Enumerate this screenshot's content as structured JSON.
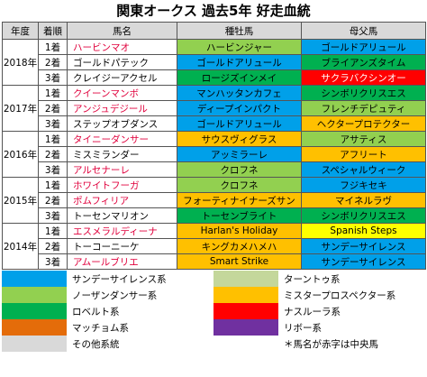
{
  "title": "関東オークス 過去5年 好走血統",
  "headers": [
    "年度",
    "着順",
    "馬名",
    "種牡馬",
    "母父馬"
  ],
  "colors": {
    "sunday": "#00a0e9",
    "northern": "#92d050",
    "roberto": "#00b050",
    "mr_prospector": "#ffc000",
    "turnto": "#c4d79b",
    "nasrullah": "#ff0000",
    "ribot": "#7030a0",
    "matchem": "#e46c0a",
    "other": "#d9d9d9",
    "yellow": "#ffff00"
  },
  "rows": [
    {
      "year": "2018年",
      "rank": "1着",
      "horse": "ハービンマオ",
      "horse_red": true,
      "sire": "ハービンジャー",
      "sire_color": "northern",
      "bms": "ゴールドアリュール",
      "bms_color": "sunday"
    },
    {
      "year": "",
      "rank": "2着",
      "horse": "ゴールドパテック",
      "horse_red": false,
      "sire": "ゴールドアリュール",
      "sire_color": "sunday",
      "bms": "ブライアンズタイム",
      "bms_color": "roberto"
    },
    {
      "year": "",
      "rank": "3着",
      "horse": "クレイジーアクセル",
      "horse_red": false,
      "sire": "ロージズインメイ",
      "sire_color": "roberto",
      "bms": "サクラバクシンオー",
      "bms_color": "nasrullah",
      "bms_white": true
    },
    {
      "year": "2017年",
      "rank": "1着",
      "horse": "クイーンマンボ",
      "horse_red": true,
      "sire": "マンハッタンカフェ",
      "sire_color": "sunday",
      "bms": "シンボリクリスエス",
      "bms_color": "roberto"
    },
    {
      "year": "",
      "rank": "2着",
      "horse": "アンジュデジール",
      "horse_red": true,
      "sire": "ディープインパクト",
      "sire_color": "sunday",
      "bms": "フレンチデピュティ",
      "bms_color": "northern"
    },
    {
      "year": "",
      "rank": "3着",
      "horse": "ステップオブダンス",
      "horse_red": false,
      "sire": "ゴールドアリュール",
      "sire_color": "sunday",
      "bms": "ヘクタープロテクター",
      "bms_color": "mr_prospector"
    },
    {
      "year": "2016年",
      "rank": "1着",
      "horse": "タイニーダンサー",
      "horse_red": true,
      "sire": "サウスヴィグラス",
      "sire_color": "mr_prospector",
      "bms": "アサティス",
      "bms_color": "northern"
    },
    {
      "year": "",
      "rank": "2着",
      "horse": "ミスミランダー",
      "horse_red": false,
      "sire": "アッミラーレ",
      "sire_color": "sunday",
      "bms": "アフリート",
      "bms_color": "mr_prospector"
    },
    {
      "year": "",
      "rank": "3着",
      "horse": "アルセナーレ",
      "horse_red": true,
      "sire": "クロフネ",
      "sire_color": "northern",
      "bms": "スペシャルウィーク",
      "bms_color": "sunday"
    },
    {
      "year": "2015年",
      "rank": "1着",
      "horse": "ホワイトフーガ",
      "horse_red": true,
      "sire": "クロフネ",
      "sire_color": "northern",
      "bms": "フジキセキ",
      "bms_color": "sunday"
    },
    {
      "year": "",
      "rank": "2着",
      "horse": "ポムフィリア",
      "horse_red": true,
      "sire": "フォーティナイナーズサン",
      "sire_color": "mr_prospector",
      "bms": "マイネルラヴ",
      "bms_color": "mr_prospector"
    },
    {
      "year": "",
      "rank": "3着",
      "horse": "トーセンマリオン",
      "horse_red": false,
      "sire": "トーセンブライト",
      "sire_color": "roberto",
      "bms": "シンボリクリスエス",
      "bms_color": "roberto"
    },
    {
      "year": "2014年",
      "rank": "1着",
      "horse": "エスメラルディーナ",
      "horse_red": true,
      "sire": "Harlan's Holiday",
      "sire_color": "mr_prospector",
      "bms": "Spanish Steps",
      "bms_color": "yellow"
    },
    {
      "year": "",
      "rank": "2着",
      "horse": "トーコーニーケ",
      "horse_red": false,
      "sire": "キングカメハメハ",
      "sire_color": "mr_prospector",
      "bms": "サンデーサイレンス",
      "bms_color": "sunday"
    },
    {
      "year": "",
      "rank": "3着",
      "horse": "アムールブリエ",
      "horse_red": true,
      "sire": "Smart Strike",
      "sire_color": "mr_prospector",
      "bms": "サンデーサイレンス",
      "bms_color": "sunday"
    }
  ],
  "legend": [
    {
      "left_color": "sunday",
      "left_label": "サンデーサイレンス系",
      "right_color": "turnto",
      "right_label": "ターントゥ系"
    },
    {
      "left_color": "northern",
      "left_label": "ノーザンダンサー系",
      "right_color": "mr_prospector",
      "right_label": "ミスタープロスペクター系"
    },
    {
      "left_color": "roberto",
      "left_label": "ロベルト系",
      "right_color": "nasrullah",
      "right_label": "ナスルーラ系"
    },
    {
      "left_color": "matchem",
      "left_label": "マッチョム系",
      "right_color": "ribot",
      "right_label": "リボー系"
    },
    {
      "left_color": "other",
      "left_label": "その他系統",
      "right_color": "",
      "right_label": "＊馬名が赤字は中央馬"
    }
  ]
}
